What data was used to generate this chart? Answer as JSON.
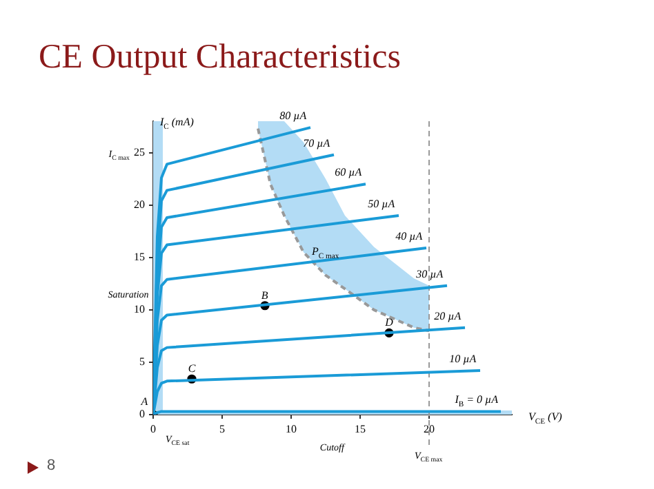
{
  "chart_data": {
    "type": "line",
    "title": "CE Output Characteristics",
    "xlabel": "V$_{CE}$ (V)",
    "ylabel": "I$_{C}$ (mA)",
    "xlim": [
      0,
      26
    ],
    "ylim": [
      0,
      28
    ],
    "xticks": [
      0,
      5,
      10,
      15,
      20
    ],
    "yticks": [
      0,
      5,
      10,
      15,
      20,
      25
    ],
    "grid": false,
    "legend": false,
    "marker": "none",
    "line_style": "solid",
    "series": [
      {
        "name": "80 µA",
        "color": "#1a9bd7",
        "x": [
          0,
          0.3,
          0.6,
          1,
          11.4
        ],
        "values": [
          0,
          17,
          22.6,
          23.9,
          27.4
        ]
      },
      {
        "name": "70 µA",
        "color": "#1a9bd7",
        "x": [
          0,
          0.3,
          0.6,
          1,
          13.1
        ],
        "values": [
          0,
          15,
          20.4,
          21.4,
          24.8
        ]
      },
      {
        "name": "60 µA",
        "color": "#1a9bd7",
        "x": [
          0,
          0.3,
          0.6,
          1,
          15.4
        ],
        "values": [
          0,
          13,
          17.9,
          18.8,
          22
        ]
      },
      {
        "name": "50 µA",
        "color": "#1a9bd7",
        "x": [
          0,
          0.3,
          0.6,
          1,
          17.8
        ],
        "values": [
          0,
          11.4,
          15.4,
          16.2,
          19
        ]
      },
      {
        "name": "40 µA",
        "color": "#1a9bd7",
        "x": [
          0,
          0.3,
          0.6,
          1,
          19.8
        ],
        "values": [
          0,
          9,
          12.3,
          12.9,
          15.9
        ]
      },
      {
        "name": "30 µA",
        "color": "#1a9bd7",
        "x": [
          0,
          0.3,
          0.6,
          1,
          21.3
        ],
        "values": [
          0,
          6.6,
          9,
          9.5,
          12.3
        ]
      },
      {
        "name": "20 µA",
        "color": "#1a9bd7",
        "x": [
          0,
          0.3,
          0.6,
          1,
          22.6
        ],
        "values": [
          0,
          4.5,
          6.1,
          6.4,
          8.3
        ]
      },
      {
        "name": "10 µA",
        "color": "#1a9bd7",
        "x": [
          0,
          0.3,
          0.6,
          1,
          23.7
        ],
        "values": [
          0,
          2.2,
          3,
          3.2,
          4.2
        ]
      },
      {
        "name": "I$_{B}$ = 0 µA",
        "color": "#1a9bd7",
        "x": [
          0,
          0.3,
          0.6,
          25.2
        ],
        "values": [
          0,
          0.2,
          0.3,
          0.3
        ]
      },
      {
        "name": "P$_{C max}$",
        "color": "#999999",
        "line_style": "dashed",
        "x": [
          7.6,
          8.5,
          9.5,
          10.9,
          12.5,
          13.9,
          16,
          18.9,
          20
        ],
        "values": [
          27.3,
          22,
          19,
          15.5,
          13.3,
          12,
          10,
          8.3,
          8
        ],
        "lower": [
          27.3,
          22,
          19,
          15.5,
          13.3,
          12,
          10,
          8.3,
          8
        ],
        "upper": [
          28,
          28,
          28,
          26,
          22.5,
          19,
          16,
          13,
          12.3
        ]
      },
      {
        "type": "scatter",
        "color": "#000000",
        "marker": "circle",
        "x": [
          0,
          2.8,
          8.1,
          17.1
        ],
        "values": [
          0,
          3.4,
          10.4,
          7.8
        ]
      }
    ],
    "bands": [
      {
        "axis": "x",
        "from": 0,
        "to": 0.7,
        "label": "Saturation",
        "color": "#b3dcf5"
      },
      {
        "axis": "y",
        "from": 0,
        "to": 0.4,
        "label": "Cutoff",
        "color": "#b3dcf5"
      }
    ],
    "ref_lines": [
      {
        "axis": "x",
        "value": 20,
        "label": "V$_{CE max}$",
        "color": "#999999",
        "line_style": "dashed"
      }
    ],
    "annotations": [
      {
        "text": "A",
        "x": 0,
        "y": 0
      },
      {
        "text": "B",
        "x": 8.1,
        "y": 10.4
      },
      {
        "text": "C",
        "x": 2.8,
        "y": 3.4
      },
      {
        "text": "D",
        "x": 17.1,
        "y": 7.8
      },
      {
        "text": "I$_{C max}$",
        "x": 0,
        "y": 25
      },
      {
        "text": "V$_{CE sat}$",
        "x": 0.7,
        "y": 0
      },
      "8"
    ]
  }
}
